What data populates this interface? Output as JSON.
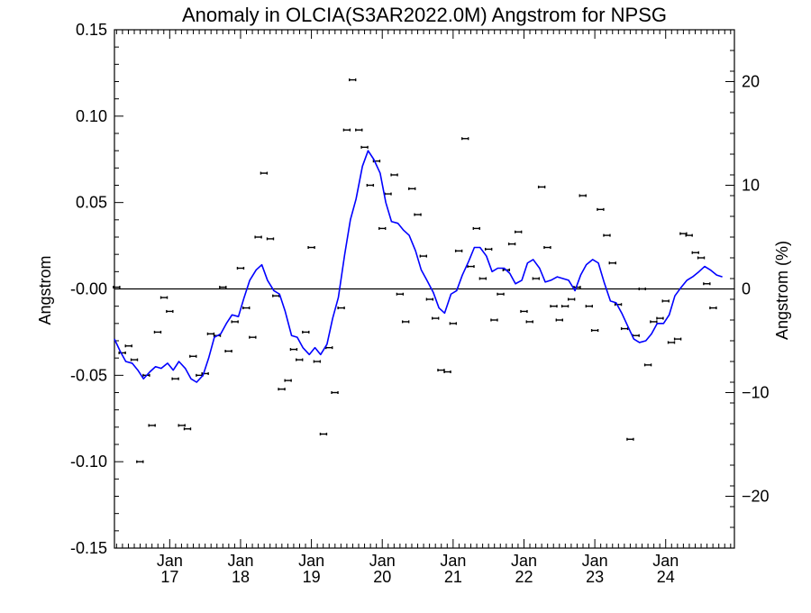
{
  "chart_data": {
    "type": "line",
    "title": "Anomaly in OLCIA(S3AR2022.0M) Angstrom for NPSG",
    "ylabel_left": "Angstrom",
    "ylabel_right": "Angstrom (%)",
    "xlim": [
      2016.22,
      2024.97
    ],
    "ylim_left": [
      -0.15,
      0.15
    ],
    "ylim_right": [
      -25,
      25
    ],
    "yticks_left": [
      {
        "value": 0.15,
        "label": "0.15"
      },
      {
        "value": 0.1,
        "label": "0.10"
      },
      {
        "value": 0.05,
        "label": "0.05"
      },
      {
        "value": 0.0,
        "label": "-0.00"
      },
      {
        "value": -0.05,
        "label": "-0.05"
      },
      {
        "value": -0.1,
        "label": "-0.10"
      },
      {
        "value": -0.15,
        "label": "-0.15"
      }
    ],
    "yticks_right": [
      {
        "value": 20,
        "label": "20"
      },
      {
        "value": 10,
        "label": "10"
      },
      {
        "value": 0,
        "label": "0"
      },
      {
        "value": -10,
        "label": "−10"
      },
      {
        "value": -20,
        "label": "−20"
      }
    ],
    "xticks": [
      {
        "value": 2017.0,
        "month": "Jan",
        "year": "17"
      },
      {
        "value": 2018.0,
        "month": "Jan",
        "year": "18"
      },
      {
        "value": 2019.0,
        "month": "Jan",
        "year": "19"
      },
      {
        "value": 2020.0,
        "month": "Jan",
        "year": "20"
      },
      {
        "value": 2021.0,
        "month": "Jan",
        "year": "21"
      },
      {
        "value": 2022.0,
        "month": "Jan",
        "year": "22"
      },
      {
        "value": 2023.0,
        "month": "Jan",
        "year": "23"
      },
      {
        "value": 2024.0,
        "month": "Jan",
        "year": "24"
      }
    ],
    "zero_line": 0,
    "series": [
      {
        "kind": "monthly_markers",
        "style": "short horizontal bar with error caps",
        "color": "#000000",
        "points": [
          [
            2016.25,
            0.001
          ],
          [
            2016.33,
            -0.037
          ],
          [
            2016.42,
            -0.033
          ],
          [
            2016.5,
            -0.041
          ],
          [
            2016.58,
            -0.1
          ],
          [
            2016.67,
            -0.05
          ],
          [
            2016.75,
            -0.079
          ],
          [
            2016.83,
            -0.025
          ],
          [
            2016.92,
            -0.005
          ],
          [
            2017.0,
            -0.013
          ],
          [
            2017.08,
            -0.052
          ],
          [
            2017.17,
            -0.079
          ],
          [
            2017.25,
            -0.081
          ],
          [
            2017.33,
            -0.039
          ],
          [
            2017.42,
            -0.05
          ],
          [
            2017.5,
            -0.049
          ],
          [
            2017.58,
            -0.026
          ],
          [
            2017.67,
            -0.027
          ],
          [
            2017.75,
            0.001
          ],
          [
            2017.83,
            -0.036
          ],
          [
            2017.92,
            -0.019
          ],
          [
            2018.0,
            0.012
          ],
          [
            2018.08,
            -0.011
          ],
          [
            2018.17,
            -0.028
          ],
          [
            2018.25,
            0.03
          ],
          [
            2018.33,
            0.067
          ],
          [
            2018.42,
            0.029
          ],
          [
            2018.5,
            -0.004
          ],
          [
            2018.58,
            -0.058
          ],
          [
            2018.67,
            -0.053
          ],
          [
            2018.75,
            -0.035
          ],
          [
            2018.83,
            -0.041
          ],
          [
            2018.92,
            -0.025
          ],
          [
            2019.0,
            0.024
          ],
          [
            2019.08,
            -0.042
          ],
          [
            2019.17,
            -0.084
          ],
          [
            2019.25,
            -0.034
          ],
          [
            2019.33,
            -0.06
          ],
          [
            2019.42,
            -0.011
          ],
          [
            2019.5,
            0.092
          ],
          [
            2019.58,
            0.121
          ],
          [
            2019.67,
            0.092
          ],
          [
            2019.75,
            0.082
          ],
          [
            2019.83,
            0.06
          ],
          [
            2019.92,
            0.074
          ],
          [
            2020.0,
            0.035
          ],
          [
            2020.08,
            0.055
          ],
          [
            2020.17,
            0.066
          ],
          [
            2020.25,
            -0.003
          ],
          [
            2020.33,
            -0.019
          ],
          [
            2020.42,
            0.058
          ],
          [
            2020.5,
            0.043
          ],
          [
            2020.58,
            0.019
          ],
          [
            2020.67,
            -0.006
          ],
          [
            2020.75,
            -0.017
          ],
          [
            2020.83,
            -0.047
          ],
          [
            2020.92,
            -0.048
          ],
          [
            2021.0,
            -0.02
          ],
          [
            2021.08,
            0.022
          ],
          [
            2021.17,
            0.087
          ],
          [
            2021.25,
            0.013
          ],
          [
            2021.33,
            0.035
          ],
          [
            2021.42,
            0.006
          ],
          [
            2021.5,
            0.023
          ],
          [
            2021.58,
            -0.018
          ],
          [
            2021.67,
            -0.003
          ],
          [
            2021.75,
            0.011
          ],
          [
            2021.83,
            0.026
          ],
          [
            2021.92,
            0.033
          ],
          [
            2022.0,
            -0.013
          ],
          [
            2022.08,
            -0.019
          ],
          [
            2022.17,
            0.006
          ],
          [
            2022.25,
            0.059
          ],
          [
            2022.33,
            0.024
          ],
          [
            2022.42,
            -0.01
          ],
          [
            2022.5,
            -0.018
          ],
          [
            2022.58,
            -0.01
          ],
          [
            2022.67,
            -0.006
          ],
          [
            2022.75,
            0.001
          ],
          [
            2022.83,
            0.054
          ],
          [
            2022.92,
            -0.01
          ],
          [
            2023.0,
            -0.024
          ],
          [
            2023.08,
            0.046
          ],
          [
            2023.17,
            0.031
          ],
          [
            2023.25,
            0.015
          ],
          [
            2023.33,
            -0.009
          ],
          [
            2023.42,
            -0.023
          ],
          [
            2023.5,
            -0.087
          ],
          [
            2023.58,
            -0.027
          ],
          [
            2023.67,
            0.0
          ],
          [
            2023.75,
            -0.044
          ],
          [
            2023.83,
            -0.019
          ],
          [
            2023.92,
            -0.017
          ],
          [
            2024.0,
            -0.007
          ],
          [
            2024.08,
            -0.031
          ],
          [
            2024.17,
            -0.029
          ],
          [
            2024.25,
            0.032
          ],
          [
            2024.33,
            0.031
          ],
          [
            2024.42,
            0.021
          ],
          [
            2024.5,
            0.018
          ],
          [
            2024.58,
            0.003
          ],
          [
            2024.67,
            -0.011
          ]
        ]
      },
      {
        "kind": "smoothed_line",
        "color": "#0000ff",
        "points": [
          [
            2016.22,
            -0.029
          ],
          [
            2016.3,
            -0.036
          ],
          [
            2016.38,
            -0.042
          ],
          [
            2016.47,
            -0.043
          ],
          [
            2016.55,
            -0.047
          ],
          [
            2016.63,
            -0.052
          ],
          [
            2016.72,
            -0.048
          ],
          [
            2016.8,
            -0.045
          ],
          [
            2016.88,
            -0.046
          ],
          [
            2016.97,
            -0.043
          ],
          [
            2017.05,
            -0.047
          ],
          [
            2017.13,
            -0.042
          ],
          [
            2017.22,
            -0.046
          ],
          [
            2017.3,
            -0.052
          ],
          [
            2017.38,
            -0.054
          ],
          [
            2017.47,
            -0.05
          ],
          [
            2017.55,
            -0.04
          ],
          [
            2017.63,
            -0.028
          ],
          [
            2017.72,
            -0.026
          ],
          [
            2017.8,
            -0.02
          ],
          [
            2017.88,
            -0.015
          ],
          [
            2017.97,
            -0.016
          ],
          [
            2018.05,
            -0.005
          ],
          [
            2018.13,
            0.005
          ],
          [
            2018.22,
            0.011
          ],
          [
            2018.3,
            0.014
          ],
          [
            2018.38,
            0.005
          ],
          [
            2018.47,
            -0.001
          ],
          [
            2018.55,
            -0.003
          ],
          [
            2018.63,
            -0.013
          ],
          [
            2018.72,
            -0.027
          ],
          [
            2018.8,
            -0.028
          ],
          [
            2018.88,
            -0.034
          ],
          [
            2018.97,
            -0.038
          ],
          [
            2019.05,
            -0.034
          ],
          [
            2019.13,
            -0.038
          ],
          [
            2019.22,
            -0.032
          ],
          [
            2019.3,
            -0.017
          ],
          [
            2019.38,
            -0.005
          ],
          [
            2019.47,
            0.02
          ],
          [
            2019.55,
            0.04
          ],
          [
            2019.63,
            0.052
          ],
          [
            2019.72,
            0.071
          ],
          [
            2019.8,
            0.08
          ],
          [
            2019.88,
            0.075
          ],
          [
            2019.97,
            0.067
          ],
          [
            2020.05,
            0.05
          ],
          [
            2020.13,
            0.039
          ],
          [
            2020.22,
            0.038
          ],
          [
            2020.3,
            0.034
          ],
          [
            2020.38,
            0.031
          ],
          [
            2020.47,
            0.022
          ],
          [
            2020.55,
            0.011
          ],
          [
            2020.63,
            0.005
          ],
          [
            2020.72,
            -0.002
          ],
          [
            2020.8,
            -0.011
          ],
          [
            2020.88,
            -0.014
          ],
          [
            2020.97,
            -0.003
          ],
          [
            2021.05,
            -0.001
          ],
          [
            2021.13,
            0.008
          ],
          [
            2021.22,
            0.016
          ],
          [
            2021.3,
            0.024
          ],
          [
            2021.38,
            0.024
          ],
          [
            2021.47,
            0.019
          ],
          [
            2021.55,
            0.01
          ],
          [
            2021.63,
            0.012
          ],
          [
            2021.72,
            0.012
          ],
          [
            2021.8,
            0.009
          ],
          [
            2021.88,
            0.003
          ],
          [
            2021.97,
            0.005
          ],
          [
            2022.05,
            0.015
          ],
          [
            2022.13,
            0.017
          ],
          [
            2022.22,
            0.012
          ],
          [
            2022.3,
            0.004
          ],
          [
            2022.38,
            0.005
          ],
          [
            2022.47,
            0.007
          ],
          [
            2022.55,
            0.006
          ],
          [
            2022.63,
            0.005
          ],
          [
            2022.72,
            -0.001
          ],
          [
            2022.8,
            0.008
          ],
          [
            2022.88,
            0.014
          ],
          [
            2022.97,
            0.017
          ],
          [
            2023.05,
            0.015
          ],
          [
            2023.13,
            0.004
          ],
          [
            2023.22,
            -0.007
          ],
          [
            2023.3,
            -0.008
          ],
          [
            2023.38,
            -0.014
          ],
          [
            2023.47,
            -0.022
          ],
          [
            2023.55,
            -0.029
          ],
          [
            2023.63,
            -0.031
          ],
          [
            2023.72,
            -0.03
          ],
          [
            2023.8,
            -0.026
          ],
          [
            2023.88,
            -0.02
          ],
          [
            2023.97,
            -0.02
          ],
          [
            2024.05,
            -0.015
          ],
          [
            2024.13,
            -0.004
          ],
          [
            2024.22,
            0.001
          ],
          [
            2024.3,
            0.005
          ],
          [
            2024.38,
            0.007
          ],
          [
            2024.47,
            0.01
          ],
          [
            2024.55,
            0.013
          ],
          [
            2024.63,
            0.011
          ],
          [
            2024.72,
            0.008
          ],
          [
            2024.8,
            0.007
          ]
        ]
      }
    ]
  }
}
